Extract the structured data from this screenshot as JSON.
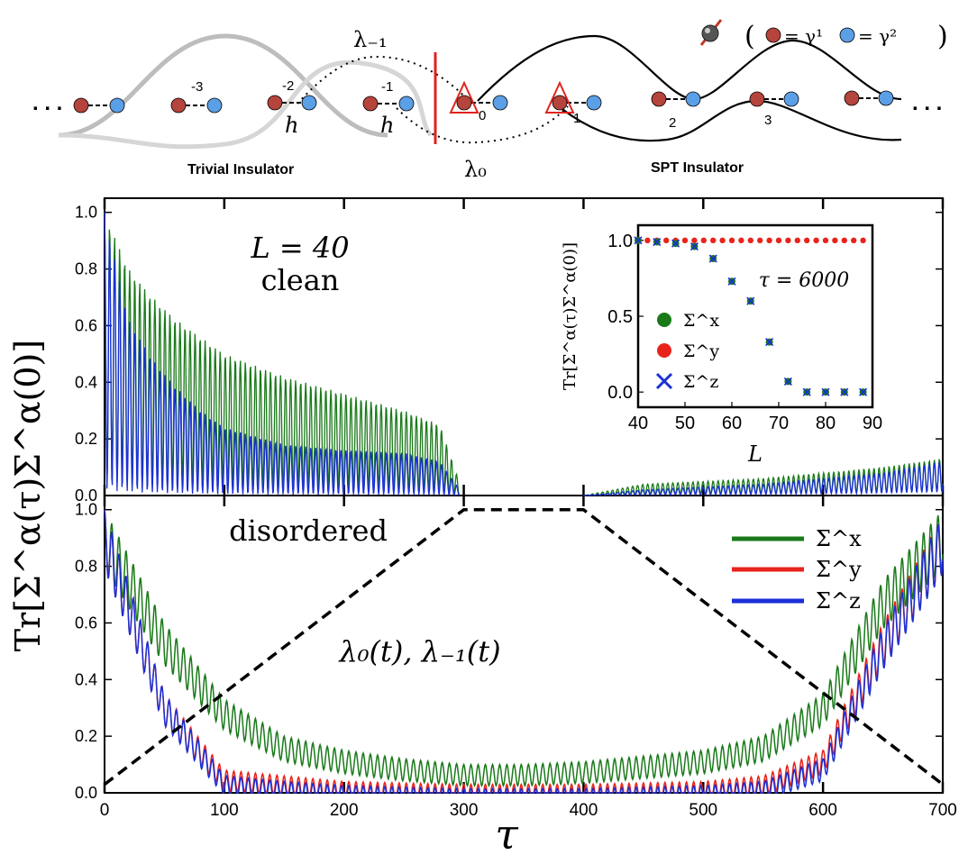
{
  "header": {
    "legend_eq1": "= γ¹",
    "legend_eq2": "= γ²",
    "open_paren": "(",
    "close_paren": ")",
    "lambda_m1": "λ₋₁",
    "lambda_0": "λ₀",
    "h_label": "h",
    "trivial_label": "Trivial Insulator",
    "spt_label": "SPT Insulator",
    "ellipsis": ". . .",
    "site_labels": [
      "-3",
      "-2",
      "-1",
      "0",
      "1",
      "2",
      "3"
    ],
    "colors": {
      "gamma1": "#b5443c",
      "gamma2": "#5b9fe6",
      "barrier": "#e0231c"
    }
  },
  "chart_data": [
    {
      "type": "line",
      "panel": "top",
      "annotation": [
        "L = 40",
        "clean"
      ],
      "xlim": [
        0,
        700
      ],
      "ylim": [
        0,
        1.05
      ],
      "yticks": [
        0.0,
        0.2,
        0.4,
        0.6,
        0.8,
        1.0
      ],
      "ytick_labels": [
        "0.0",
        "0.2",
        "0.4",
        "0.6",
        "0.8",
        "1.0"
      ],
      "series": [
        {
          "color": "#1a7a1a",
          "x": [
            0,
            20,
            40,
            60,
            80,
            100,
            150,
            200,
            250,
            280,
            300,
            400,
            450,
            500,
            550,
            600,
            650,
            700
          ],
          "y": [
            1.0,
            0.8,
            0.7,
            0.62,
            0.56,
            0.5,
            0.42,
            0.36,
            0.3,
            0.25,
            0.0,
            0.0,
            0.04,
            0.05,
            0.06,
            0.08,
            0.1,
            0.13
          ]
        },
        {
          "color": "#1a2fd6",
          "x": [
            0,
            20,
            40,
            60,
            80,
            100,
            150,
            200,
            250,
            280,
            300,
            400,
            450,
            500,
            550,
            600,
            650,
            700
          ],
          "y": [
            1.0,
            0.62,
            0.48,
            0.38,
            0.3,
            0.24,
            0.18,
            0.16,
            0.15,
            0.12,
            0.0,
            0.0,
            0.02,
            0.03,
            0.04,
            0.06,
            0.08,
            0.12
          ]
        }
      ]
    },
    {
      "type": "line",
      "panel": "bottom",
      "annotation": [
        "disordered"
      ],
      "curve_label": "λ₀(t), λ₋₁(t)",
      "xlabel": "τ",
      "ylabel": "Tr[Σ^α(τ)Σ^α(0)]",
      "xlim": [
        0,
        700
      ],
      "ylim": [
        0,
        1.05
      ],
      "xticks": [
        0,
        100,
        200,
        300,
        400,
        500,
        600,
        700
      ],
      "xtick_labels": [
        "0",
        "100",
        "200",
        "300",
        "400",
        "500",
        "600",
        "700"
      ],
      "yticks": [
        0.0,
        0.2,
        0.4,
        0.6,
        0.8,
        1.0
      ],
      "ytick_labels": [
        "0.0",
        "0.2",
        "0.4",
        "0.6",
        "0.8",
        "1.0"
      ],
      "legend": [
        "Σ^x",
        "Σ^y",
        "Σ^z"
      ],
      "legend_position": "top-right",
      "series": [
        {
          "name": "Σ^x",
          "color": "#1a7a1a",
          "x": [
            0,
            50,
            100,
            150,
            200,
            250,
            300,
            350,
            400,
            450,
            500,
            550,
            600,
            650,
            700
          ],
          "y": [
            1.0,
            0.6,
            0.33,
            0.2,
            0.15,
            0.12,
            0.1,
            0.1,
            0.11,
            0.13,
            0.15,
            0.2,
            0.35,
            0.75,
            1.0
          ]
        },
        {
          "name": "Σ^y",
          "color": "#e8231c",
          "x": [
            0,
            50,
            100,
            150,
            200,
            250,
            300,
            350,
            400,
            450,
            500,
            550,
            600,
            650,
            700
          ],
          "y": [
            1.0,
            0.35,
            0.08,
            0.06,
            0.04,
            0.035,
            0.03,
            0.03,
            0.03,
            0.035,
            0.04,
            0.06,
            0.15,
            0.6,
            0.98
          ]
        },
        {
          "name": "Σ^z",
          "color": "#1a2fd6",
          "x": [
            0,
            50,
            100,
            150,
            200,
            250,
            300,
            350,
            400,
            450,
            500,
            550,
            600,
            650,
            700
          ],
          "y": [
            1.0,
            0.35,
            0.06,
            0.04,
            0.025,
            0.02,
            0.015,
            0.015,
            0.015,
            0.02,
            0.025,
            0.04,
            0.12,
            0.58,
            0.98
          ]
        },
        {
          "name": "λ₀(t), λ₋₁(t)",
          "color": "#000000",
          "dash": true,
          "x": [
            0,
            300,
            400,
            700
          ],
          "y": [
            0.03,
            1.0,
            1.0,
            0.03
          ]
        }
      ]
    },
    {
      "type": "scatter",
      "panel": "inset",
      "annotation": "τ = 6000",
      "xlabel": "L",
      "ylabel": "Tr[Σ^α(τ)Σ^α(0)]",
      "xlim": [
        40,
        90
      ],
      "ylim": [
        -0.1,
        1.1
      ],
      "xticks": [
        40,
        50,
        60,
        70,
        80,
        90
      ],
      "xtick_labels": [
        "40",
        "50",
        "60",
        "70",
        "80",
        "90"
      ],
      "yticks": [
        0.0,
        0.5,
        1.0
      ],
      "ytick_labels": [
        "0.0",
        "0.5",
        "1.0"
      ],
      "legend": [
        "Σ^x",
        "Σ^y",
        "Σ^z"
      ],
      "series": [
        {
          "name": "Σ^x",
          "color": "#1a7a1a",
          "marker": "circle",
          "x": [
            40,
            44,
            48,
            52,
            56,
            60,
            64,
            68,
            72,
            76,
            80,
            84,
            88
          ],
          "y": [
            1.0,
            0.99,
            0.98,
            0.96,
            0.88,
            0.73,
            0.6,
            0.33,
            0.07,
            0.0,
            0.0,
            0.0,
            0.0
          ]
        },
        {
          "name": "Σ^y",
          "color": "#e8231c",
          "marker": "circle",
          "x": [
            40,
            42,
            44,
            46,
            48,
            50,
            52,
            54,
            56,
            58,
            60,
            62,
            64,
            66,
            68,
            70,
            72,
            74,
            76,
            78,
            80,
            82,
            84,
            86,
            88
          ],
          "y": [
            1,
            1,
            1,
            1,
            1,
            1,
            1,
            1,
            1,
            1,
            1,
            1,
            1,
            1,
            1,
            1,
            1,
            1,
            1,
            1,
            1,
            1,
            1,
            1,
            1
          ]
        },
        {
          "name": "Σ^z",
          "color": "#1a2fd6",
          "marker": "x",
          "x": [
            40,
            44,
            48,
            52,
            56,
            60,
            64,
            68,
            72,
            76,
            80,
            84,
            88
          ],
          "y": [
            1.0,
            0.99,
            0.98,
            0.96,
            0.88,
            0.73,
            0.6,
            0.33,
            0.07,
            0.0,
            0.0,
            0.0,
            0.0
          ]
        }
      ]
    }
  ]
}
